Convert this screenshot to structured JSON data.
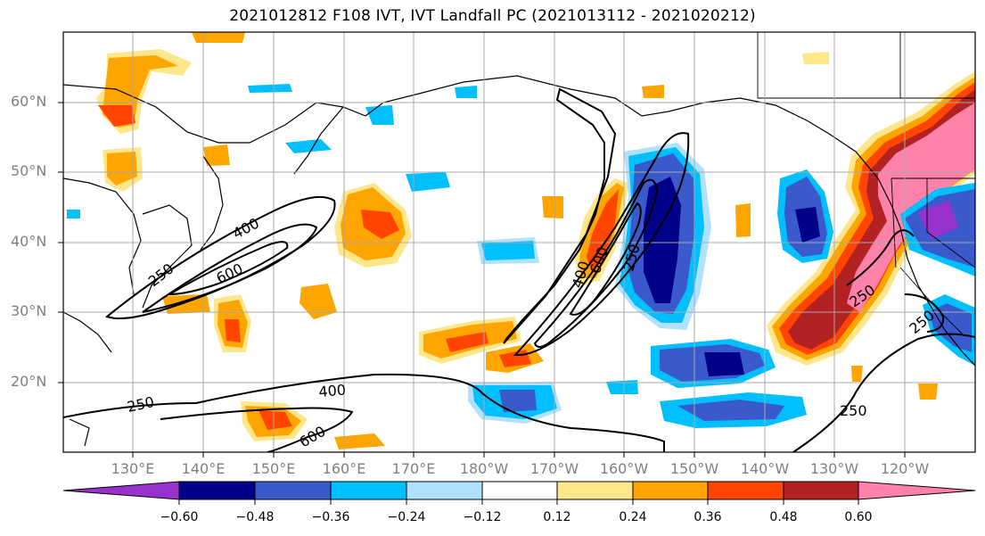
{
  "title": "2021012812 F108 IVT, IVT Landfall PC (2021013112 - 2021020212)",
  "lat_labels": [
    "60°N",
    "50°N",
    "40°N",
    "30°N",
    "20°N"
  ],
  "lon_labels": [
    "130°E",
    "140°E",
    "150°E",
    "160°E",
    "170°E",
    "180°W",
    "170°W",
    "160°W",
    "150°W",
    "140°W",
    "130°W",
    "120°W"
  ],
  "contour_labels": [
    "250",
    "400",
    "600",
    "250",
    "400",
    "600",
    "250",
    "400",
    "600",
    "250",
    "250",
    "250"
  ],
  "colorbar": {
    "tick_labels": [
      "−0.60",
      "−0.48",
      "−0.36",
      "−0.24",
      "−0.12",
      "0.12",
      "0.24",
      "0.36",
      "0.48",
      "0.60"
    ],
    "colors": [
      "#9932cc",
      "#000088",
      "#3a5acc",
      "#00bfff",
      "#b0e2ff",
      "#ffffff",
      "#fde78a",
      "#ffa500",
      "#ff4500",
      "#b22222",
      "#ff82ab"
    ]
  }
}
